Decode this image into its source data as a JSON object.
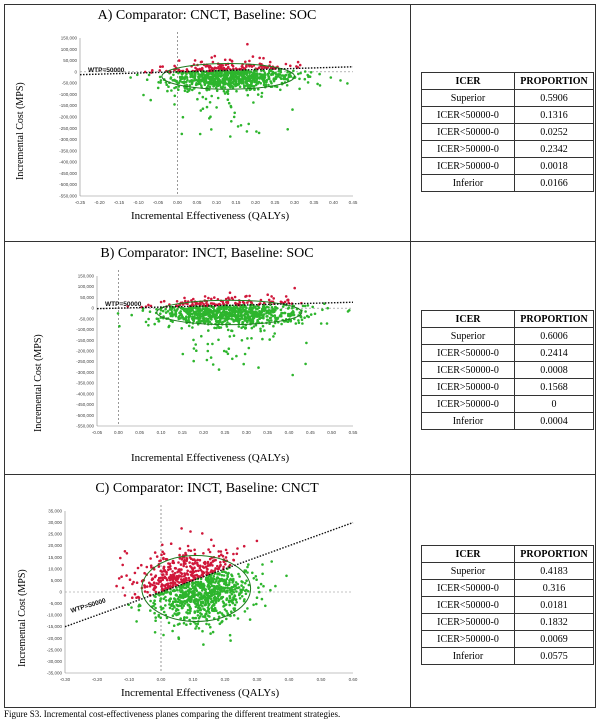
{
  "caption": "Figure S3. Incremental cost-effectiveness planes comparing the different treatment strategies.",
  "panels": [
    {
      "title": "A) Comparator: CNCT, Baseline: SOC",
      "ylabel": "Incremental Cost (MPS)",
      "xlabel": "Incremental Effectiveness (QALYs)",
      "wtp_label": "WTP=50000",
      "table_headers": [
        "ICER",
        "PROPORTION"
      ],
      "table_rows": [
        [
          "Superior",
          "0.5906"
        ],
        [
          "ICER<50000-0",
          "0.1316"
        ],
        [
          "ICER<50000-0",
          "0.0252"
        ],
        [
          "ICER>50000-0",
          "0.2342"
        ],
        [
          "ICER>50000-0",
          "0.0018"
        ],
        [
          "Inferior",
          "0.0166"
        ]
      ]
    },
    {
      "title": "B) Comparator: INCT, Baseline: SOC",
      "ylabel": "Incremental Cost (MPS)",
      "xlabel": "Incremental Effectiveness (QALYs)",
      "wtp_label": "WTP=50000",
      "table_headers": [
        "ICER",
        "PROPORTION"
      ],
      "table_rows": [
        [
          "Superior",
          "0.6006"
        ],
        [
          "ICER<50000-0",
          "0.2414"
        ],
        [
          "ICER<50000-0",
          "0.0008"
        ],
        [
          "ICER>50000-0",
          "0.1568"
        ],
        [
          "ICER>50000-0",
          "0"
        ],
        [
          "Inferior",
          "0.0004"
        ]
      ]
    },
    {
      "title": "C) Comparator: INCT, Baseline: CNCT",
      "ylabel": "Incremental Cost (MPS)",
      "xlabel": "Incremental Effectiveness (QALYs)",
      "wtp_label": "WTP=50000",
      "table_headers": [
        "ICER",
        "PROPORTION"
      ],
      "table_rows": [
        [
          "Superior",
          "0.4183"
        ],
        [
          "ICER<50000-0",
          "0.316"
        ],
        [
          "ICER<50000-0",
          "0.0181"
        ],
        [
          "ICER>50000-0",
          "0.1832"
        ],
        [
          "ICER>50000-0",
          "0.0069"
        ],
        [
          "Inferior",
          "0.0575"
        ]
      ]
    }
  ],
  "colors": {
    "above_wtp": "#d0173a",
    "below_wtp": "#2db52d",
    "ellipse": "#1e7a1e"
  },
  "chart_data": [
    {
      "type": "scatter",
      "title": "A) Comparator: CNCT, Baseline: SOC",
      "xlabel": "Incremental Effectiveness (QALYs)",
      "ylabel": "Incremental Cost (MPS)",
      "xlim": [
        -0.25,
        0.45
      ],
      "ylim": [
        -550000,
        150000
      ],
      "xticks": [
        "-0.25",
        "-0.20",
        "-0.15",
        "-0.10",
        "-0.05",
        "0.00",
        "0.05",
        "0.10",
        "0.15",
        "0.20",
        "0.25",
        "0.30",
        "0.35",
        "0.40",
        "0.45"
      ],
      "yticks": [
        "150,000",
        "100,000",
        "50,000",
        "0",
        "-50,000",
        "-100,000",
        "-150,000",
        "-200,000",
        "-250,000",
        "-300,000",
        "-350,000",
        "-400,000",
        "-450,000",
        "-500,000",
        "-550,000"
      ],
      "wtp": 50000,
      "cloud": {
        "center_x": 0.13,
        "center_y": -20000,
        "sd_x": 0.085,
        "sd_y": 30000,
        "tail_y": -260000
      },
      "grid": false
    },
    {
      "type": "scatter",
      "title": "B) Comparator: INCT, Baseline: SOC",
      "xlabel": "Incremental Effectiveness (QALYs)",
      "ylabel": "Incremental Cost (MPS)",
      "xlim": [
        -0.05,
        0.55
      ],
      "ylim": [
        -550000,
        150000
      ],
      "xticks": [
        "-0.05",
        "0.00",
        "0.05",
        "0.10",
        "0.15",
        "0.20",
        "0.25",
        "0.30",
        "0.35",
        "0.40",
        "0.45",
        "0.50",
        "0.55"
      ],
      "yticks": [
        "150,000",
        "100,000",
        "50,000",
        "0",
        "-50,000",
        "-100,000",
        "-150,000",
        "-200,000",
        "-250,000",
        "-300,000",
        "-350,000",
        "-400,000",
        "-450,000",
        "-500,000",
        "-550,000"
      ],
      "wtp": 50000,
      "cloud": {
        "center_x": 0.26,
        "center_y": -20000,
        "sd_x": 0.085,
        "sd_y": 30000,
        "tail_y": -300000
      },
      "grid": false
    },
    {
      "type": "scatter",
      "title": "C) Comparator: INCT, Baseline: CNCT",
      "xlabel": "Incremental Effectiveness (QALYs)",
      "ylabel": "Incremental Cost (MPS)",
      "xlim": [
        -0.3,
        0.6
      ],
      "ylim": [
        -35000,
        35000
      ],
      "xticks": [
        "-0.30",
        "-0.20",
        "-0.10",
        "0.00",
        "0.10",
        "0.20",
        "0.30",
        "0.40",
        "0.50",
        "0.60"
      ],
      "yticks": [
        "35,000",
        "30,000",
        "25,000",
        "20,000",
        "15,000",
        "10,000",
        "5,000",
        "0",
        "-5,000",
        "-10,000",
        "-15,000",
        "-20,000",
        "-25,000",
        "-30,000",
        "-35,000"
      ],
      "wtp": 50000,
      "cloud": {
        "center_x": 0.11,
        "center_y": 1500,
        "sd_x": 0.085,
        "sd_y": 7500,
        "tail_y": 0
      },
      "grid": false
    }
  ]
}
